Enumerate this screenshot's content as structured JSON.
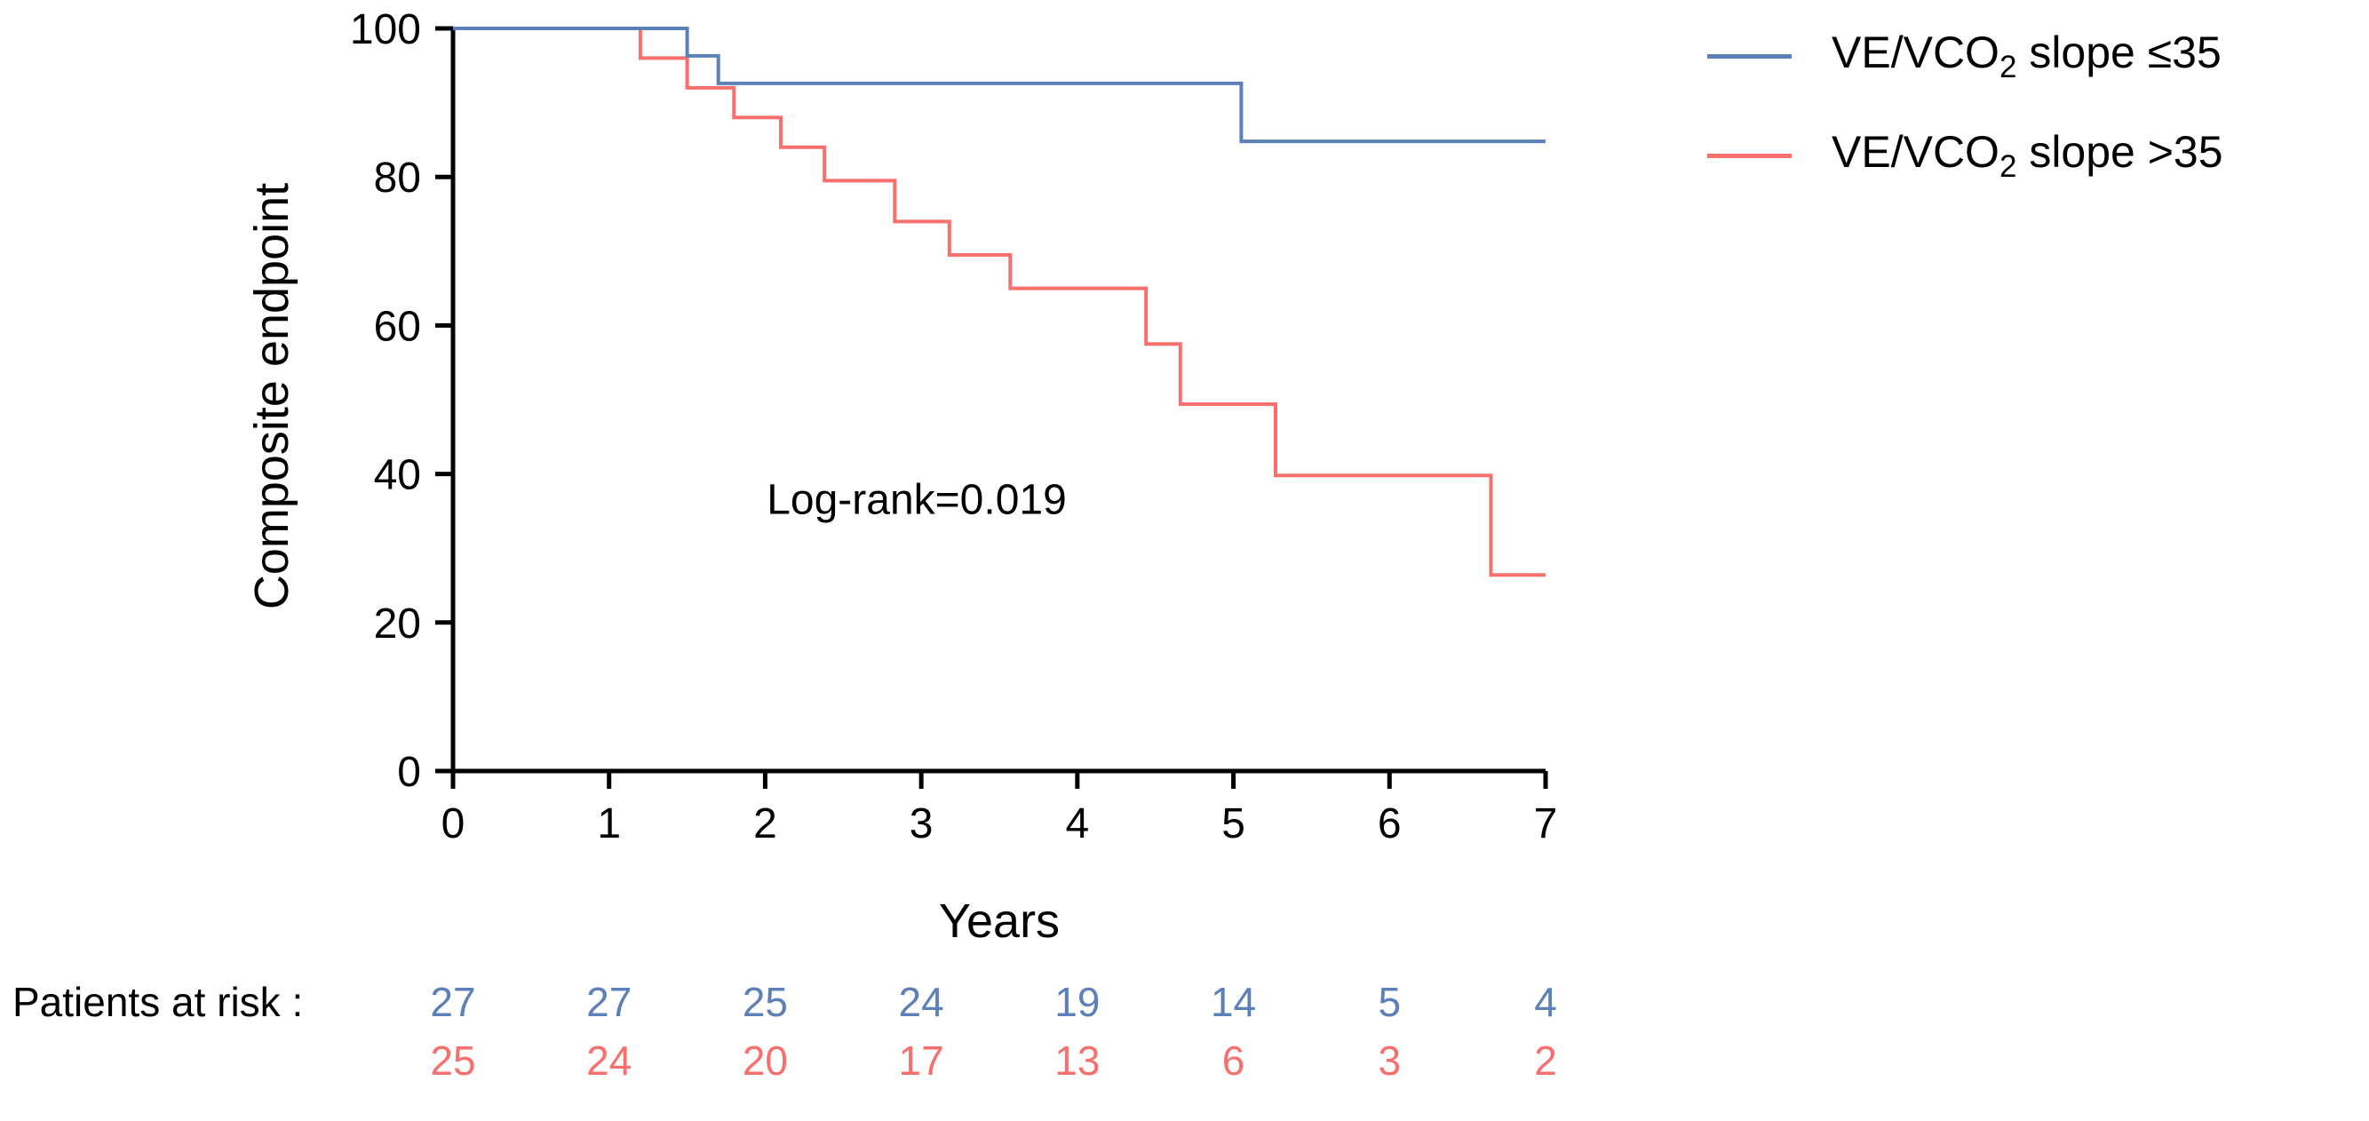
{
  "chart_data": {
    "type": "line",
    "variant": "kaplan_meier_step",
    "title": "",
    "xlabel": "Years",
    "ylabel": "Composite endpoint",
    "xlim": [
      0,
      7
    ],
    "ylim": [
      0,
      100
    ],
    "xticks": [
      "0",
      "1",
      "2",
      "3",
      "4",
      "5",
      "6",
      "7"
    ],
    "yticks": [
      "0",
      "20",
      "40",
      "60",
      "80",
      "100"
    ],
    "grid": false,
    "legend_position": "top-right",
    "annotation": "Log-rank=0.019",
    "colors": {
      "axis": "#000000",
      "group_le35": "#5e80b8",
      "group_gt35": "#f8706e"
    },
    "series": [
      {
        "name": "VE/VCO2 slope ≤35",
        "color": "#5e80b8",
        "steps": [
          [
            0,
            100
          ],
          [
            1.5,
            100
          ],
          [
            1.5,
            96.3
          ],
          [
            1.7,
            96.3
          ],
          [
            1.7,
            92.6
          ],
          [
            5.05,
            92.6
          ],
          [
            5.05,
            84.8
          ],
          [
            7,
            84.8
          ]
        ]
      },
      {
        "name": "VE/VCO2 slope >35",
        "color": "#f8706e",
        "steps": [
          [
            0,
            100
          ],
          [
            1.2,
            100
          ],
          [
            1.2,
            96
          ],
          [
            1.5,
            96
          ],
          [
            1.5,
            92
          ],
          [
            1.8,
            92
          ],
          [
            1.8,
            88
          ],
          [
            2.1,
            88
          ],
          [
            2.1,
            84
          ],
          [
            2.38,
            84
          ],
          [
            2.38,
            79.5
          ],
          [
            2.83,
            79.5
          ],
          [
            2.83,
            74
          ],
          [
            3.18,
            74
          ],
          [
            3.18,
            69.5
          ],
          [
            3.57,
            69.5
          ],
          [
            3.57,
            65
          ],
          [
            4.44,
            65
          ],
          [
            4.44,
            57.5
          ],
          [
            4.66,
            57.5
          ],
          [
            4.66,
            49.4
          ],
          [
            5.27,
            49.4
          ],
          [
            5.27,
            39.8
          ],
          [
            6.65,
            39.8
          ],
          [
            6.65,
            26.4
          ],
          [
            7,
            26.4
          ]
        ]
      }
    ],
    "legend": [
      {
        "pre": "VE/VCO",
        "sub": "2",
        "post": " slope ≤35",
        "color": "#5e80b8"
      },
      {
        "pre": "VE/VCO",
        "sub": "2",
        "post": " slope >35",
        "color": "#f8706e"
      }
    ],
    "patients_at_risk": {
      "label": "Patients at risk :",
      "times": [
        0,
        1,
        2,
        3,
        4,
        5,
        6,
        7
      ],
      "rows": [
        {
          "group": "VE/VCO2 slope ≤35",
          "color": "#5e80b8",
          "values": [
            "27",
            "27",
            "25",
            "24",
            "19",
            "14",
            "5",
            "4"
          ]
        },
        {
          "group": "VE/VCO2 slope >35",
          "color": "#f8706e",
          "values": [
            "25",
            "24",
            "20",
            "17",
            "13",
            "6",
            "3",
            "2"
          ]
        }
      ]
    }
  }
}
